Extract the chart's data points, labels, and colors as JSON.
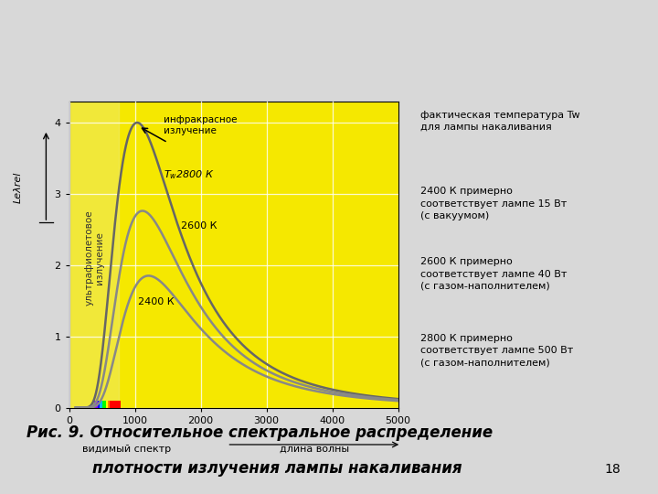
{
  "caption_line1": "Рис. 9. Относительное спектральное распределение",
  "caption_line2": "плотности излучения лампы накаливания",
  "page_number": "18",
  "fig_bg_color": "#d8d8d8",
  "plot_bg_color": "#f5e800",
  "right_bg_color": "#d8d8d8",
  "ylabel": "Leλrel",
  "xlabel_bottom1": "видимый спектр",
  "xlabel_bottom2": "длина волны",
  "xlim": [
    0,
    5000
  ],
  "ylim": [
    0,
    4.3
  ],
  "xticks": [
    0,
    1000,
    2000,
    3000,
    4000,
    5000
  ],
  "yticks": [
    0,
    1,
    2,
    3,
    4
  ],
  "curve_color_dark": "#666666",
  "curve_color_mid": "#888888",
  "uv_strip_color": "#e8e8c0",
  "right_title": "фактическая температура Tw\nдля лампы накаливания",
  "right_text1": "2400 К примерно\nсоответствует лампе 15 Вт\n(с вакуумом)",
  "right_text2": "2600 К примерно\nсоответствует лампе 40 Вт\n(с газом-наполнителем)",
  "right_text3": "2800 К примерно\nсоответствует лампе 500 Вт\n(с газом-наполнителем)",
  "ann_ir_text": "инфракрасное\nизлучение",
  "ann_2800": "T₃2800 К",
  "ann_2600": "2600 К",
  "ann_2400": "2400 К",
  "uv_text": "ультрафиолетовое\nизлучение"
}
